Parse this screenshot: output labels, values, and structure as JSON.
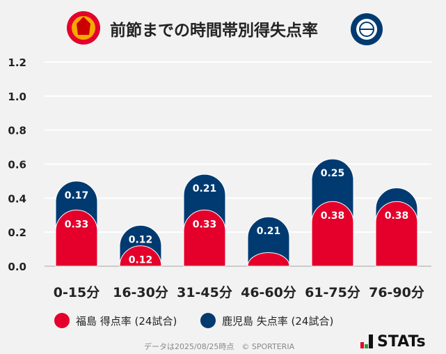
{
  "title": "前節までの時間帯別得失点率",
  "logos": {
    "home": "FUKUSHIMA UNITED FC",
    "away": "KAGOSHIMA UNITED FC"
  },
  "colors": {
    "home": "#e4002b",
    "away": "#003a70"
  },
  "chart_data": {
    "type": "bar",
    "stacked": true,
    "categories": [
      "0-15分",
      "16-30分",
      "31-45分",
      "46-60分",
      "61-75分",
      "76-90分"
    ],
    "series": [
      {
        "name": "福島 得点率 (24試合)",
        "values": [
          0.33,
          0.12,
          0.33,
          0.08,
          0.38,
          0.38
        ],
        "labels": [
          "0.33",
          "0.12",
          "0.33",
          "",
          "0.38",
          "0.38"
        ]
      },
      {
        "name": "鹿児島 失点率 (24試合)",
        "values": [
          0.17,
          0.12,
          0.21,
          0.21,
          0.25,
          0.08
        ],
        "labels": [
          "0.17",
          "0.12",
          "0.21",
          "0.21",
          "0.25",
          ""
        ]
      }
    ],
    "ylim": [
      0,
      1.2
    ],
    "yticks": [
      "0.0",
      "0.2",
      "0.4",
      "0.6",
      "0.8",
      "1.0",
      "1.2"
    ],
    "grid": true,
    "legend": "bottom"
  },
  "footer": "データは2025/08/25時点　© SPORTERIA",
  "brand": "STATs"
}
